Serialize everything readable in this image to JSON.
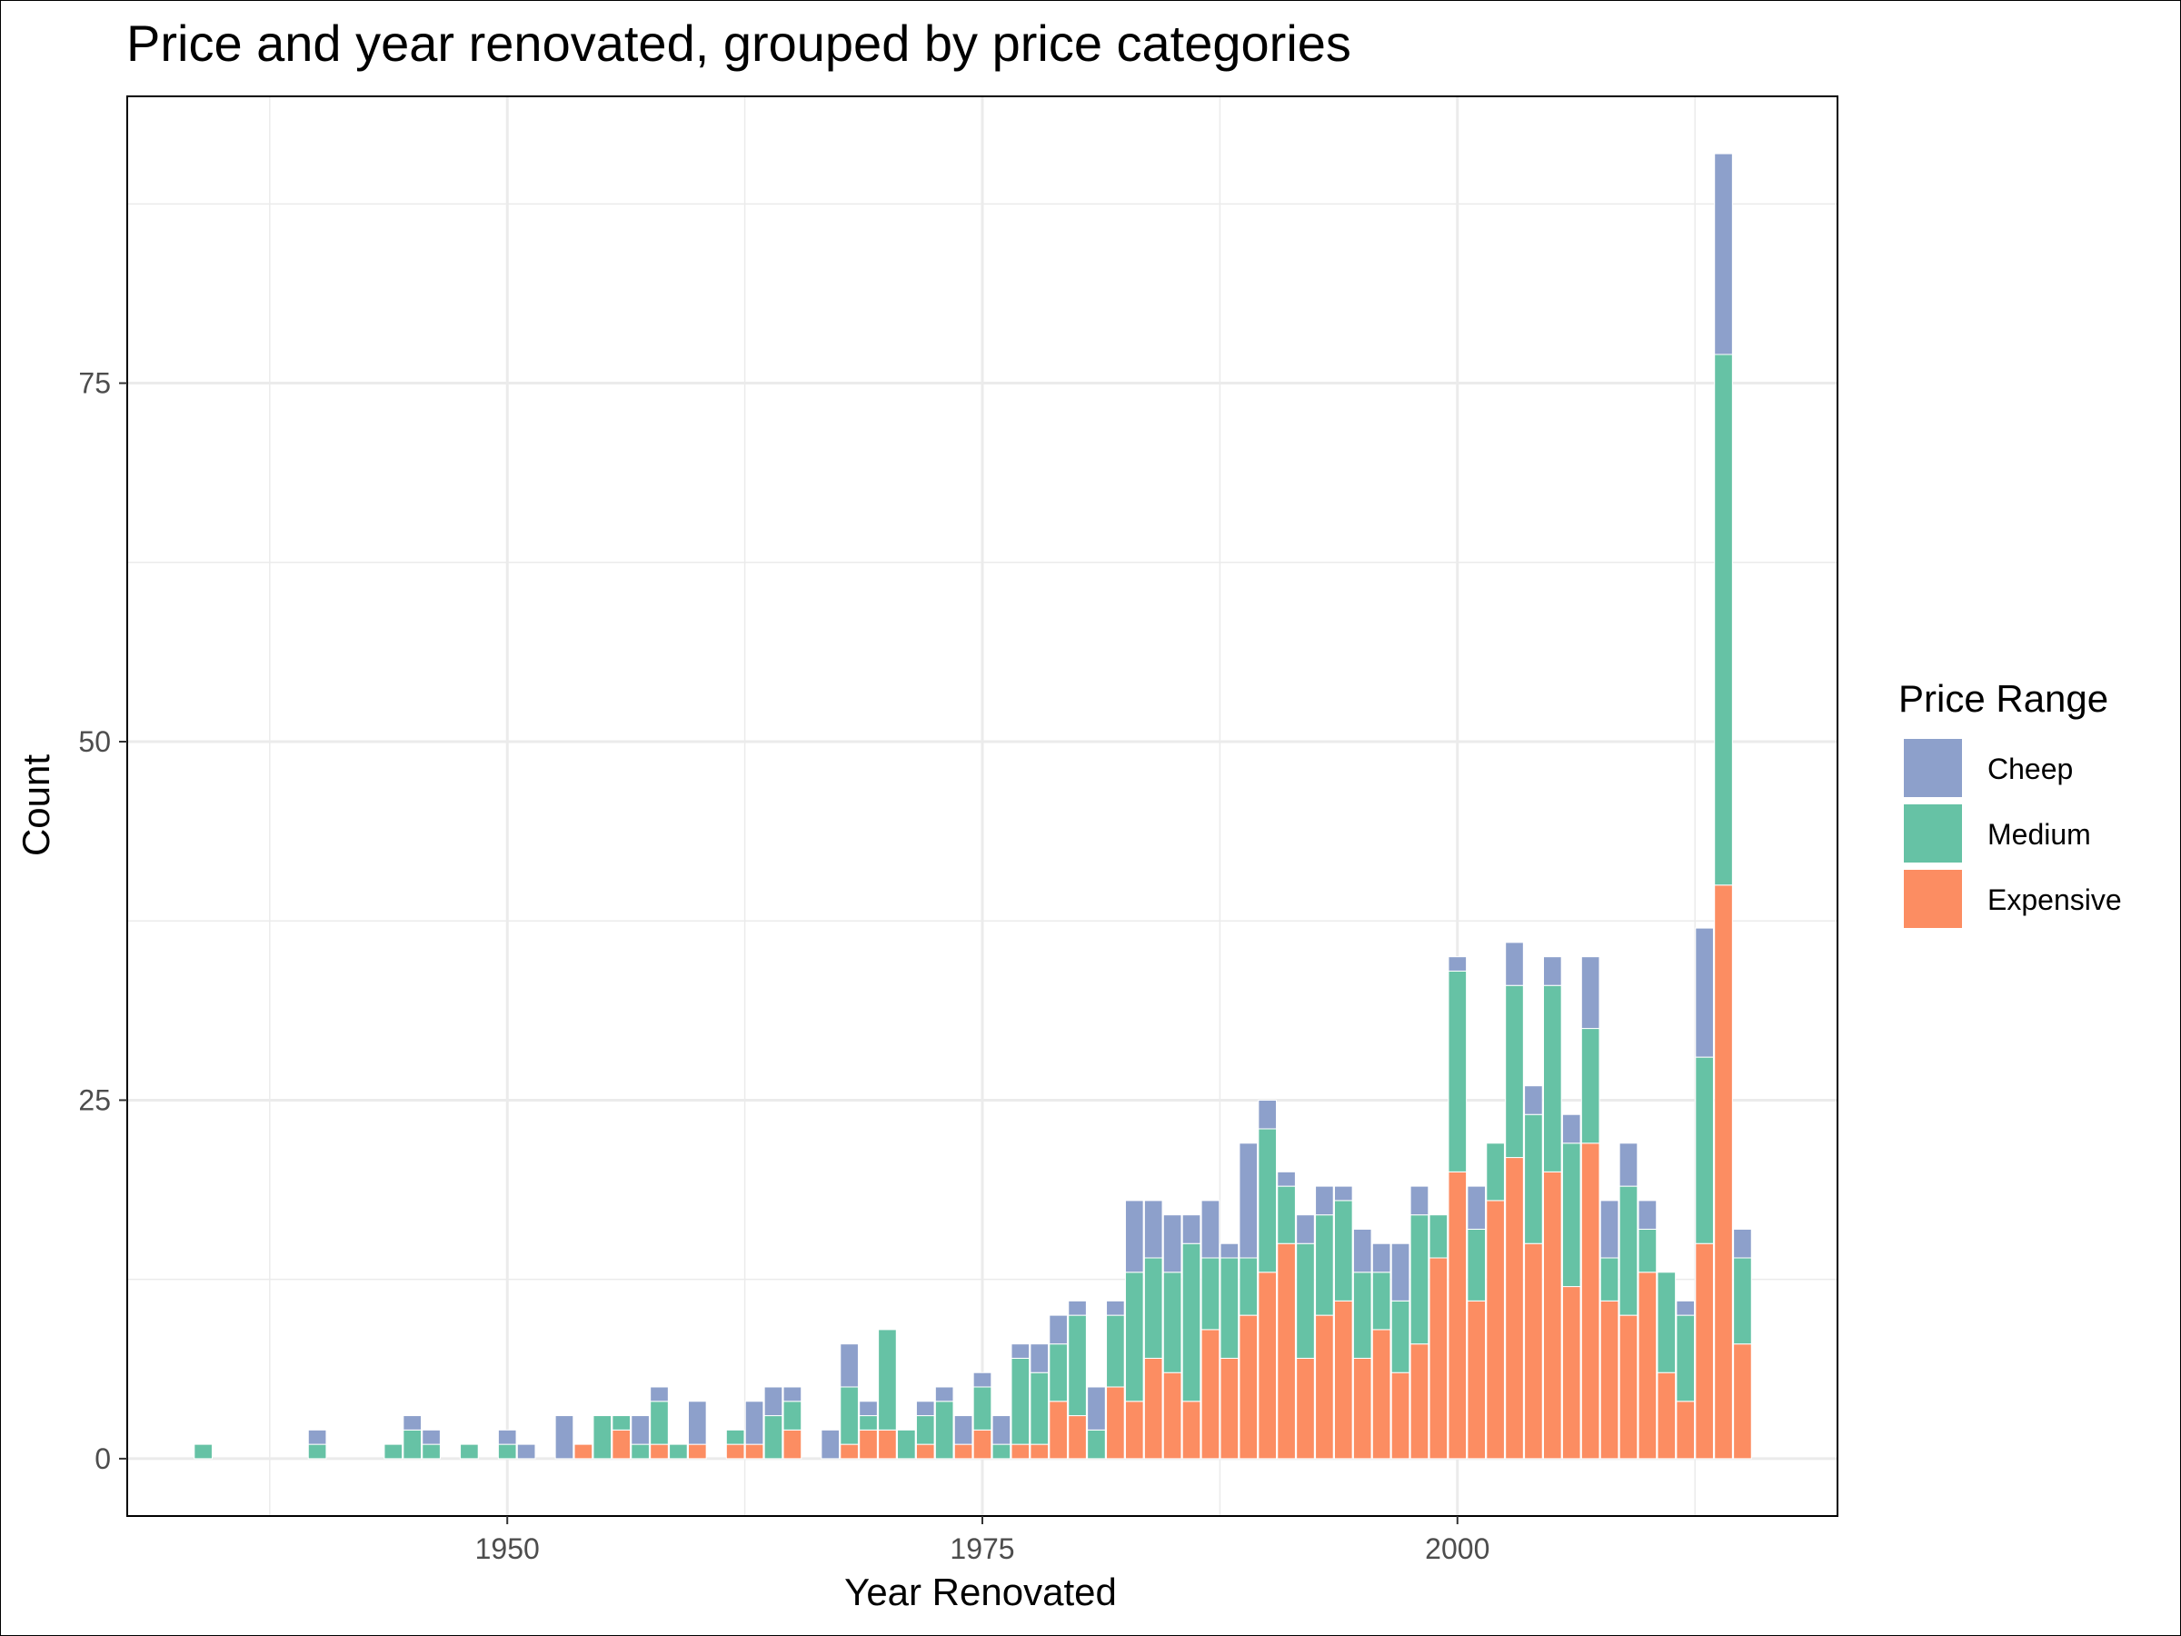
{
  "chart_data": {
    "type": "bar",
    "stacked": true,
    "title": "Price and year renovated, grouped by price categories",
    "xlabel": "Year Renovated",
    "ylabel": "Count",
    "xlim": [
      1930,
      2020
    ],
    "ylim": [
      -4,
      95
    ],
    "x_ticks": [
      1950,
      1975,
      2000
    ],
    "x_tick_labels": [
      "1950",
      "1975",
      "2000"
    ],
    "y_ticks": [
      0,
      25,
      50,
      75
    ],
    "y_tick_labels": [
      "0",
      "25",
      "50",
      "75"
    ],
    "grid": true,
    "legend": {
      "title": "Price Range",
      "position": "right",
      "entries": [
        "Cheep",
        "Medium",
        "Expensive"
      ]
    },
    "colors": {
      "Cheep": "#8DA0CB",
      "Medium": "#66C2A5",
      "Expensive": "#FC8D62"
    },
    "x": [
      1934,
      1940,
      1944,
      1945,
      1946,
      1948,
      1950,
      1951,
      1953,
      1954,
      1955,
      1956,
      1957,
      1958,
      1959,
      1960,
      1962,
      1963,
      1964,
      1965,
      1967,
      1968,
      1969,
      1970,
      1971,
      1972,
      1973,
      1974,
      1975,
      1976,
      1977,
      1978,
      1979,
      1980,
      1981,
      1982,
      1983,
      1984,
      1985,
      1986,
      1987,
      1988,
      1989,
      1990,
      1991,
      1992,
      1993,
      1994,
      1995,
      1996,
      1997,
      1998,
      1999,
      2000,
      2001,
      2002,
      2003,
      2004,
      2005,
      2006,
      2007,
      2008,
      2009,
      2010,
      2011,
      2012,
      2013,
      2014,
      2015
    ],
    "series": [
      {
        "name": "Expensive",
        "values": [
          0,
          0,
          0,
          0,
          0,
          0,
          0,
          0,
          0,
          1,
          0,
          2,
          0,
          1,
          0,
          1,
          1,
          1,
          0,
          2,
          0,
          1,
          2,
          2,
          0,
          1,
          0,
          1,
          2,
          0,
          1,
          1,
          4,
          3,
          0,
          5,
          4,
          7,
          6,
          4,
          9,
          7,
          10,
          13,
          15,
          7,
          10,
          11,
          7,
          9,
          6,
          8,
          14,
          20,
          11,
          18,
          21,
          15,
          20,
          12,
          22,
          11,
          10,
          13,
          6,
          4,
          15,
          40,
          8
        ]
      },
      {
        "name": "Medium",
        "values": [
          1,
          1,
          1,
          2,
          1,
          1,
          1,
          0,
          0,
          0,
          3,
          1,
          1,
          3,
          1,
          0,
          1,
          0,
          3,
          2,
          0,
          4,
          1,
          7,
          2,
          2,
          4,
          0,
          3,
          1,
          6,
          5,
          4,
          7,
          2,
          5,
          9,
          7,
          7,
          11,
          5,
          7,
          4,
          10,
          4,
          8,
          7,
          7,
          6,
          4,
          5,
          9,
          3,
          14,
          5,
          4,
          12,
          9,
          13,
          10,
          8,
          3,
          9,
          3,
          7,
          6,
          13,
          37,
          6
        ]
      },
      {
        "name": "Cheep",
        "values": [
          0,
          1,
          0,
          1,
          1,
          0,
          1,
          1,
          3,
          0,
          0,
          0,
          2,
          1,
          0,
          3,
          0,
          3,
          2,
          1,
          2,
          3,
          1,
          0,
          0,
          1,
          1,
          2,
          1,
          2,
          1,
          2,
          2,
          1,
          3,
          1,
          5,
          4,
          4,
          2,
          4,
          1,
          8,
          2,
          1,
          2,
          2,
          1,
          3,
          2,
          4,
          2,
          0,
          1,
          3,
          0,
          3,
          2,
          2,
          2,
          5,
          4,
          3,
          2,
          0,
          1,
          9,
          14,
          2
        ]
      }
    ]
  }
}
